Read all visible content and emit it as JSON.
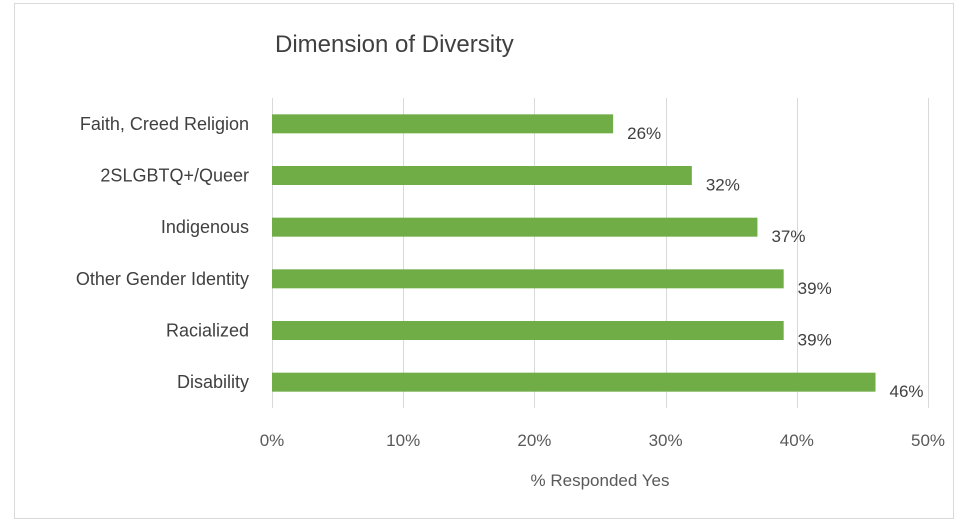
{
  "chart_data": {
    "type": "bar",
    "orientation": "horizontal",
    "title": "Dimension of Diversity",
    "xlabel": "% Responded Yes",
    "ylabel": "",
    "categories": [
      "Faith, Creed Religion",
      "2SLGBTQ+/Queer",
      "Indigenous",
      "Other Gender Identity",
      "Racialized",
      "Disability"
    ],
    "values": [
      26,
      32,
      37,
      39,
      39,
      46
    ],
    "value_labels": [
      "26%",
      "32%",
      "37%",
      "39%",
      "39%",
      "46%"
    ],
    "xlim": [
      0,
      50
    ],
    "x_ticks": [
      "0%",
      "10%",
      "20%",
      "30%",
      "40%",
      "50%"
    ],
    "grid": true,
    "legend": "none",
    "bar_color": "#70ad47"
  }
}
